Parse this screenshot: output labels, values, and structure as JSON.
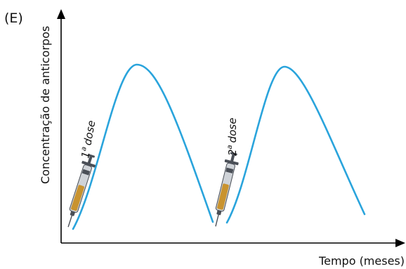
{
  "panel_label": "(E)",
  "y_axis_label": "Concentração de anticorpos",
  "x_axis_label": "Tempo (meses)",
  "annotations": [
    {
      "ordinal": "1",
      "superscript": "a",
      "word": "dose"
    },
    {
      "ordinal": "2",
      "superscript": "a",
      "word": "dose"
    }
  ],
  "colors": {
    "curve": "#2aa4dc",
    "axis": "#000000",
    "syringe_body": "#cfd3d8",
    "syringe_liquid": "#c9932f",
    "syringe_dark": "#4a4f57"
  },
  "icons": [
    "syringe-icon",
    "syringe-icon"
  ]
}
